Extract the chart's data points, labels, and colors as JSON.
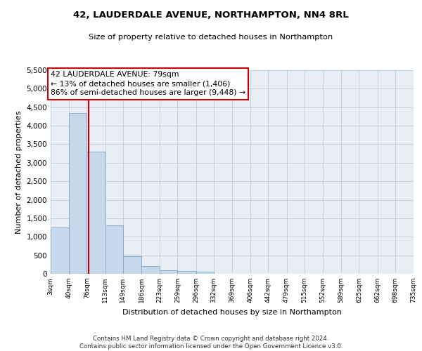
{
  "title": "42, LAUDERDALE AVENUE, NORTHAMPTON, NN4 8RL",
  "subtitle": "Size of property relative to detached houses in Northampton",
  "xlabel": "Distribution of detached houses by size in Northampton",
  "ylabel": "Number of detached properties",
  "bar_color": "#c8d8eb",
  "bar_edgecolor": "#7aaad0",
  "property_line_x": 79,
  "property_line_color": "#cc0000",
  "annotation_text": "42 LAUDERDALE AVENUE: 79sqm\n← 13% of detached houses are smaller (1,406)\n86% of semi-detached houses are larger (9,448) →",
  "annotation_box_color": "#ffffff",
  "annotation_box_edgecolor": "#cc0000",
  "footer": "Contains HM Land Registry data © Crown copyright and database right 2024.\nContains public sector information licensed under the Open Government Licence v3.0.",
  "bins": [
    3,
    40,
    76,
    113,
    149,
    186,
    223,
    259,
    296,
    332,
    369,
    406,
    442,
    479,
    515,
    552,
    589,
    625,
    662,
    698,
    735
  ],
  "counts": [
    1250,
    4350,
    3300,
    1300,
    475,
    200,
    100,
    75,
    50,
    0,
    0,
    0,
    0,
    0,
    0,
    0,
    0,
    0,
    0,
    0
  ],
  "ylim": [
    0,
    5500
  ],
  "yticks": [
    0,
    500,
    1000,
    1500,
    2000,
    2500,
    3000,
    3500,
    4000,
    4500,
    5000,
    5500
  ],
  "background_color": "#ffffff",
  "grid_color": "#c8d0d8",
  "plot_bg_color": "#e8eef4"
}
